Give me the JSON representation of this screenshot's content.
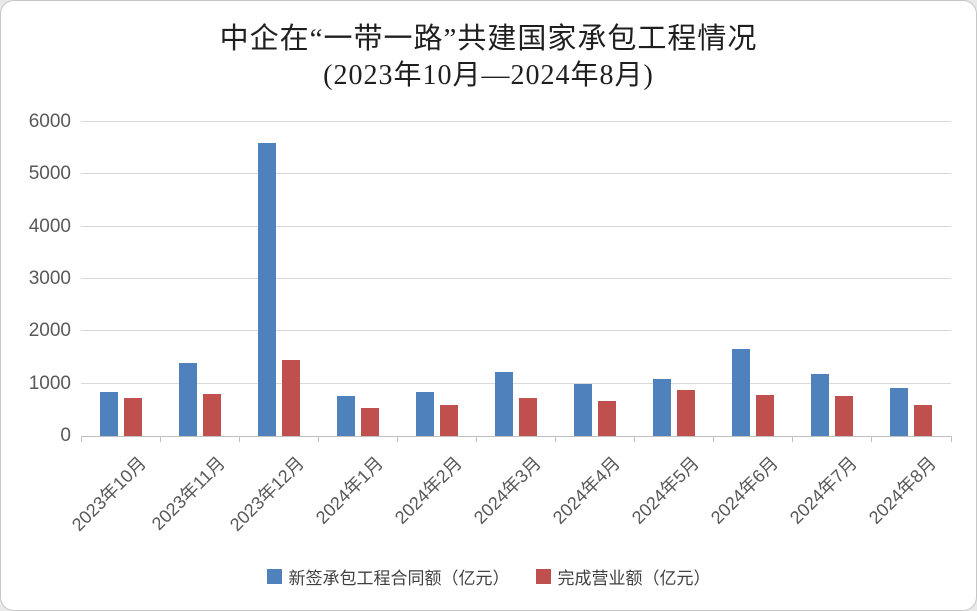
{
  "title": {
    "line1": "中企在“一带一路”共建国家承包工程情况",
    "line2": "(2023年10月—2024年8月)"
  },
  "chart_data": {
    "type": "bar",
    "title": "中企在“一带一路”共建国家承包工程情况",
    "subtitle": "(2023年10月—2024年8月)",
    "categories": [
      "2023年10月",
      "2023年11月",
      "2023年12月",
      "2024年1月",
      "2024年2月",
      "2024年3月",
      "2024年4月",
      "2024年5月",
      "2024年6月",
      "2024年7月",
      "2024年8月"
    ],
    "series": [
      {
        "name": "新签承包工程合同额（亿元）",
        "color": "#4F81BD",
        "values": [
          840,
          1400,
          5590,
          760,
          850,
          1230,
          1000,
          1080,
          1670,
          1180,
          920
        ]
      },
      {
        "name": "完成营业额（亿元）",
        "color": "#C0504D",
        "values": [
          730,
          810,
          1450,
          530,
          590,
          730,
          670,
          870,
          780,
          770,
          600
        ]
      }
    ],
    "xlabel": "",
    "ylabel": "",
    "ylim": [
      0,
      6000
    ],
    "ytick_interval": 1000,
    "ytick_labels": [
      "0",
      "1000",
      "2000",
      "3000",
      "4000",
      "5000",
      "6000"
    ],
    "grid": "horizontal",
    "legend_position": "bottom"
  },
  "colors": {
    "gridline": "#D9D9D9",
    "axis_line": "#BFBFBF",
    "axis_label_text": "#595959",
    "title_text": "#1F1F1F",
    "background": "#FFFFFF",
    "card_border": "#C6C6C6",
    "series_blue": "#4F81BD",
    "series_red": "#C0504D"
  }
}
